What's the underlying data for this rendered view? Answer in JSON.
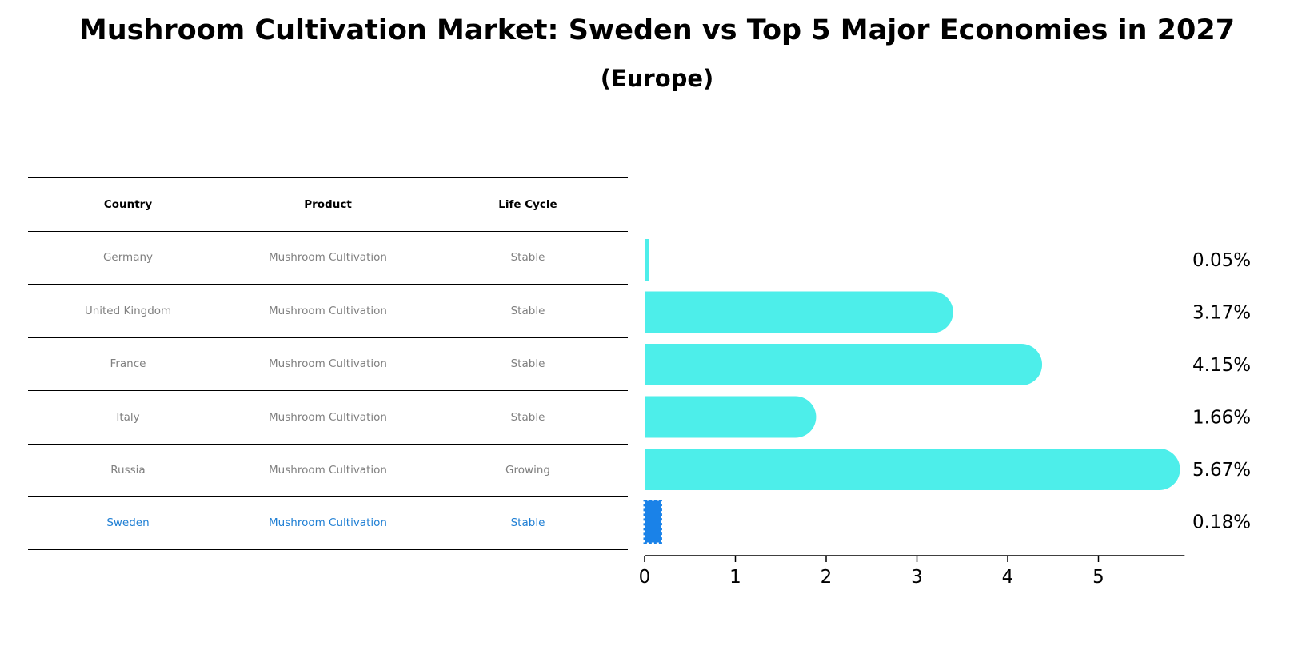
{
  "title": "Mushroom Cultivation Market: Sweden vs Top 5 Major Economies in 2027",
  "subtitle": "(Europe)",
  "table": {
    "headers": [
      "Country",
      "Product",
      "Life Cycle"
    ],
    "rows": [
      [
        "Germany",
        "Mushroom Cultivation",
        "Stable"
      ],
      [
        "United Kingdom",
        "Mushroom Cultivation",
        "Stable"
      ],
      [
        "France",
        "Mushroom Cultivation",
        "Stable"
      ],
      [
        "Italy",
        "Mushroom Cultivation",
        "Stable"
      ],
      [
        "Russia",
        "Mushroom Cultivation",
        "Growing"
      ],
      [
        "Sweden",
        "Mushroom Cultivation",
        "Stable"
      ]
    ],
    "highlight_row": 5
  },
  "chart_data": {
    "type": "bar",
    "orientation": "horizontal",
    "title": "Mushroom Cultivation Market: Sweden vs Top 5 Major Economies in 2027",
    "subtitle": "(Europe)",
    "categories": [
      "Germany",
      "United Kingdom",
      "France",
      "Italy",
      "Russia",
      "Sweden"
    ],
    "values": [
      0.05,
      3.17,
      4.15,
      1.66,
      5.67,
      0.18
    ],
    "value_labels": [
      "0.05%",
      "3.17%",
      "4.15%",
      "1.66%",
      "5.67%",
      "0.18%"
    ],
    "xlim": [
      0,
      5.95
    ],
    "xticks": [
      0,
      1,
      2,
      3,
      4,
      5
    ],
    "xlabel": "",
    "ylabel": "",
    "grid": false,
    "colors": {
      "default": "#4deeea",
      "highlight": "#1a82e8"
    },
    "highlight_index": 5
  }
}
